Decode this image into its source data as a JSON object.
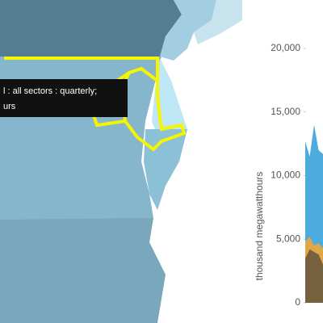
{
  "tooltip": {
    "lines": [
      "l : all sectors : quarterly;",
      "urs"
    ]
  },
  "chart_data": {
    "type": "area",
    "ylabel": "thousand megawatthours",
    "ylim": [
      0,
      20000
    ],
    "yticks": [
      0,
      {
        "value": 5000,
        "label": "5,000"
      },
      {
        "value": 10000,
        "label": "10,000"
      },
      {
        "value": 15000,
        "label": "15,000"
      },
      {
        "value": 20000,
        "label": "20,000"
      }
    ],
    "categories": [
      null,
      null,
      null,
      null,
      null
    ],
    "series": [
      {
        "color": "#3aa3d9",
        "values": [
          12700,
          11500,
          14000,
          12000,
          11700
        ]
      },
      {
        "color": "#f0a63a",
        "values": [
          4800,
          5200,
          4500,
          4700,
          4300
        ]
      },
      {
        "color": "#6b5a3e",
        "values": [
          3500,
          4200,
          4000,
          3800,
          3000
        ]
      }
    ]
  }
}
